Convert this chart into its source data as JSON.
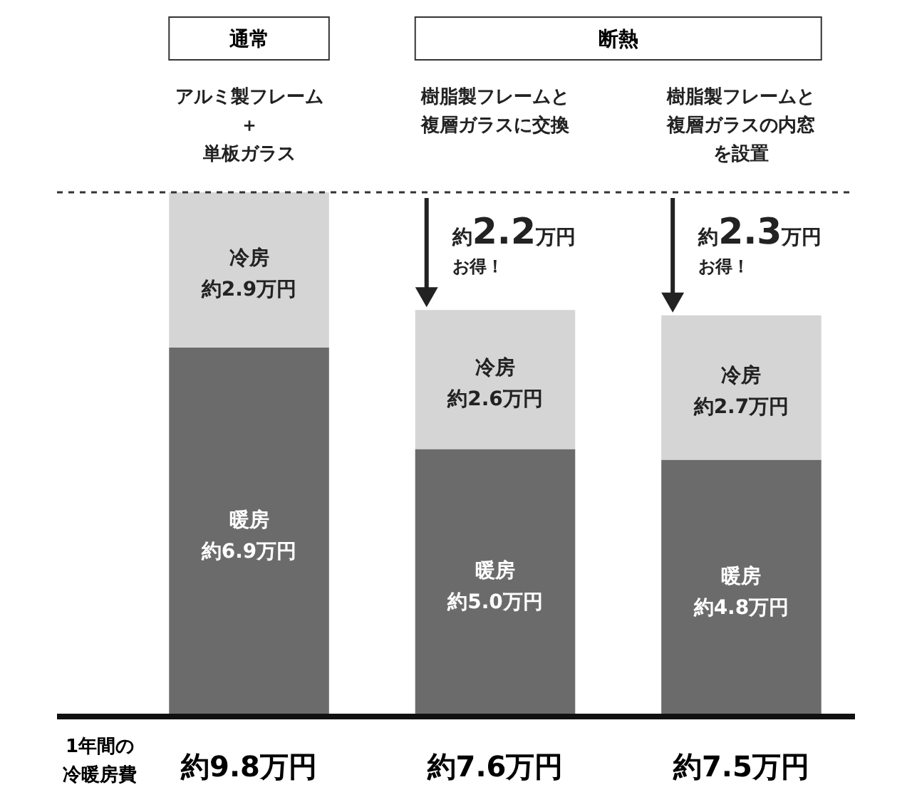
{
  "chart_data": {
    "type": "bar",
    "stacked": true,
    "categories": [
      "アルミ製フレーム＋単板ガラス",
      "樹脂製フレームと複層ガラスに交換",
      "樹脂製フレームと複層ガラスの内窓を設置"
    ],
    "series": [
      {
        "name": "暖房",
        "color": "#6b6b6b",
        "values": [
          6.9,
          5.0,
          4.8
        ],
        "value_labels": [
          "約6.9万円",
          "約5.0万円",
          "約4.8万円"
        ]
      },
      {
        "name": "冷房",
        "color": "#d5d5d5",
        "values": [
          2.9,
          2.6,
          2.7
        ],
        "value_labels": [
          "約2.9万円",
          "約2.6万円",
          "約2.7万円"
        ]
      }
    ],
    "totals": [
      "約9.8万円",
      "約7.6万円",
      "約7.5万円"
    ],
    "ref_lines": [
      {
        "axis": "y",
        "value": 9.8,
        "line_style": "dashed",
        "color": "#333333"
      }
    ],
    "annotations": [
      "通常",
      "断熱",
      "約2.2万円お得！",
      "約2.3万円お得！",
      "1年間の冷暖房費"
    ]
  }
}
